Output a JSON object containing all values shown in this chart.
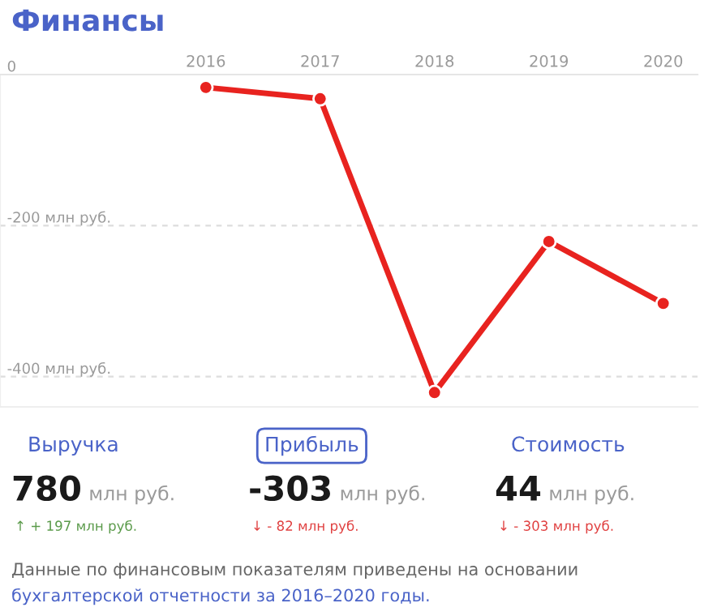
{
  "chart_data": [
    {
      "type": "line",
      "title": "Финансы",
      "categories": [
        "2016",
        "2017",
        "2018",
        "2019",
        "2020"
      ],
      "series": [
        {
          "color": "#e8231f",
          "values": [
            -17,
            -32,
            -421,
            -221,
            -303
          ]
        }
      ],
      "ylim": [
        -440,
        0
      ],
      "yticks": [
        0,
        {
          "value": -200,
          "label": "-200 млн руб."
        },
        {
          "value": -400,
          "label": "-400 млн руб."
        }
      ],
      "grid": "y",
      "marker": "circle",
      "line_style": "solid",
      "legend": false
    },
    {
      "type": "other",
      "annotations": [
        "Выручка",
        "Прибыль",
        "Стоимость",
        "780",
        "-303",
        "44",
        "млн руб.",
        "млн руб.",
        "млн руб.",
        "↑ + 197 млн руб.",
        "↓ - 82 млн руб.",
        "↓ - 303 млн руб.",
        "Данные по финансовым показателям приведены на основании",
        "бухгалтерской отчетности за 2016–2020 годы."
      ],
      "colors": [
        "#5a9a4a",
        "#e04040",
        "#e04040"
      ]
    }
  ]
}
